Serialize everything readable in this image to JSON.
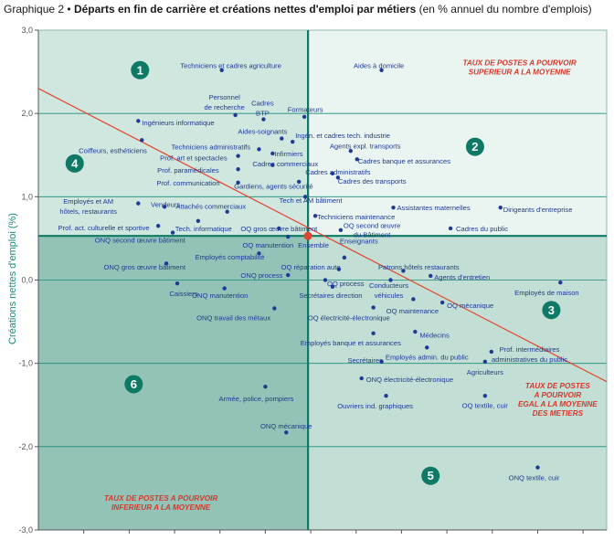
{
  "chart_data": {
    "type": "scatter",
    "title_prefix": "Graphique 2 •",
    "title": "Départs en fin de carrière et créations nettes d'emploi par métiers",
    "subtitle": "(en % annuel du nombre d'emplois)",
    "ylabel": "Créations nettes d'emploi (%)",
    "xlabel": "",
    "xlim": [
      0.0,
      6.26
    ],
    "ylim": [
      -3.0,
      3.0
    ],
    "yticks": [
      "3,0",
      "2,0",
      "1,0",
      "0,0",
      "-1,0",
      "-2,0",
      "-3,0"
    ],
    "ytick_values": [
      3,
      2,
      1,
      0,
      -1,
      -2,
      -3
    ],
    "xticks": [
      0.5,
      1.0,
      1.5,
      2.0,
      2.5,
      3.0,
      3.5,
      4.0,
      4.5,
      5.0,
      5.5,
      6.0
    ],
    "grid": true,
    "center": {
      "x": 2.97,
      "y": 0.53,
      "label": "Ensemble"
    },
    "regression_line": [
      [
        0.0,
        2.3
      ],
      [
        6.26,
        -1.22
      ]
    ],
    "quadrant_numbers": [
      {
        "n": "1",
        "x": 1.12,
        "y": 2.52
      },
      {
        "n": "2",
        "x": 4.81,
        "y": 1.6
      },
      {
        "n": "3",
        "x": 5.65,
        "y": -0.36
      },
      {
        "n": "4",
        "x": 0.4,
        "y": 1.4
      },
      {
        "n": "5",
        "x": 4.32,
        "y": -2.35
      },
      {
        "n": "6",
        "x": 1.05,
        "y": -1.25
      }
    ],
    "notes": [
      {
        "lines": [
          "TAUX DE POSTES A POURVOIR",
          "SUPERIEUR A LA MOYENNE"
        ],
        "x": 5.3,
        "y": 2.58
      },
      {
        "lines": [
          "TAUX DE POSTES",
          "A POURVOIR",
          "EGAL A LA MOYENNE",
          "DES METIERS"
        ],
        "x": 5.72,
        "y": -1.3
      },
      {
        "lines": [
          "TAUX DE POSTES A POURVOIR",
          "INFERIEUR A LA MOYENNE"
        ],
        "x": 1.35,
        "y": -2.65
      }
    ],
    "points": [
      {
        "label": "Techniciens et cadres agriculture",
        "x": 2.02,
        "y": 2.52,
        "lx": 2.12,
        "ly": 2.58,
        "a": "middle"
      },
      {
        "label": "Aides à domicile",
        "x": 3.78,
        "y": 2.52,
        "lx": 3.75,
        "ly": 2.58,
        "a": "middle"
      },
      {
        "label": "Personnel",
        "x": 2.17,
        "y": 1.98,
        "lx": 2.05,
        "ly": 2.2,
        "a": "middle"
      },
      {
        "label": "de recherche",
        "x": 2.17,
        "y": 1.98,
        "lx": 2.05,
        "ly": 2.08,
        "a": "middle"
      },
      {
        "label": "Cadres",
        "x": 2.48,
        "y": 1.93,
        "lx": 2.47,
        "ly": 2.13,
        "a": "middle"
      },
      {
        "label": "BTP",
        "x": 2.48,
        "y": 1.93,
        "lx": 2.47,
        "ly": 2.01,
        "a": "middle"
      },
      {
        "label": "Formateurs",
        "x": 2.93,
        "y": 1.96,
        "lx": 2.94,
        "ly": 2.05,
        "a": "middle"
      },
      {
        "label": "Ingénieurs informatique",
        "x": 1.1,
        "y": 1.91,
        "lx": 1.14,
        "ly": 1.89,
        "a": "start"
      },
      {
        "label": "Aides-soignants",
        "x": 2.68,
        "y": 1.7,
        "lx": 2.47,
        "ly": 1.79,
        "a": "middle"
      },
      {
        "label": "Ingén. et cadres tech. industrie",
        "x": 2.8,
        "y": 1.66,
        "lx": 2.83,
        "ly": 1.74,
        "a": "start"
      },
      {
        "label": "Coiffeurs, esthéticiens",
        "x": 1.14,
        "y": 1.68,
        "lx": 0.82,
        "ly": 1.56,
        "a": "middle"
      },
      {
        "label": "Techniciens administratifs",
        "x": 2.43,
        "y": 1.57,
        "lx": 1.9,
        "ly": 1.6,
        "a": "middle"
      },
      {
        "label": "Agents expl. transports",
        "x": 3.44,
        "y": 1.55,
        "lx": 3.6,
        "ly": 1.61,
        "a": "middle"
      },
      {
        "label": "Infirmiers",
        "x": 2.58,
        "y": 1.52,
        "lx": 2.6,
        "ly": 1.52,
        "a": "start"
      },
      {
        "label": "Prof. art et spectacles",
        "x": 2.2,
        "y": 1.49,
        "lx": 1.71,
        "ly": 1.47,
        "a": "middle"
      },
      {
        "label": "Cadres banque et assurances",
        "x": 3.51,
        "y": 1.45,
        "lx": 3.52,
        "ly": 1.43,
        "a": "start"
      },
      {
        "label": "Cadres commerciaux",
        "x": 2.58,
        "y": 1.38,
        "lx": 2.72,
        "ly": 1.4,
        "a": "middle"
      },
      {
        "label": "Prof. paramédicales",
        "x": 2.2,
        "y": 1.33,
        "lx": 1.65,
        "ly": 1.32,
        "a": "middle"
      },
      {
        "label": "Cadres administratifs",
        "x": 3.24,
        "y": 1.28,
        "lx": 3.3,
        "ly": 1.3,
        "a": "middle"
      },
      {
        "label": "Prof. communication",
        "x": 2.2,
        "y": 1.17,
        "lx": 1.65,
        "ly": 1.17,
        "a": "middle"
      },
      {
        "label": "Cadres des transports",
        "x": 3.3,
        "y": 1.23,
        "lx": 3.3,
        "ly": 1.19,
        "a": "start"
      },
      {
        "label": "Gardiens, agents sécurité",
        "x": 2.87,
        "y": 1.18,
        "lx": 2.59,
        "ly": 1.13,
        "a": "middle"
      },
      {
        "label": "Tech et AM bâtiment",
        "x": 2.94,
        "y": 1.0,
        "lx": 3.0,
        "ly": 0.96,
        "a": "middle"
      },
      {
        "label": "Employés et AM",
        "x": 1.1,
        "y": 0.92,
        "lx": 0.55,
        "ly": 0.95,
        "a": "middle"
      },
      {
        "label": "hôtels, restaurants",
        "x": 1.1,
        "y": 0.92,
        "lx": 0.55,
        "ly": 0.83,
        "a": "middle"
      },
      {
        "label": "Vendeurs",
        "x": 1.39,
        "y": 0.88,
        "lx": 1.4,
        "ly": 0.91,
        "a": "middle"
      },
      {
        "label": "Attachés commerciaux",
        "x": 2.08,
        "y": 0.82,
        "lx": 1.9,
        "ly": 0.89,
        "a": "middle"
      },
      {
        "label": "Assistantes maternelles",
        "x": 3.91,
        "y": 0.87,
        "lx": 3.95,
        "ly": 0.87,
        "a": "start"
      },
      {
        "label": "Dirigeants d'entreprise",
        "x": 5.09,
        "y": 0.87,
        "lx": 5.12,
        "ly": 0.85,
        "a": "start"
      },
      {
        "label": "Techniciens maintenance",
        "x": 3.05,
        "y": 0.77,
        "lx": 3.07,
        "ly": 0.76,
        "a": "start"
      },
      {
        "label": "Tech. informatique",
        "x": 1.76,
        "y": 0.71,
        "lx": 1.82,
        "ly": 0.62,
        "a": "middle"
      },
      {
        "label": "Prof. act. culturelle et sportive",
        "x": 1.32,
        "y": 0.65,
        "lx": 0.72,
        "ly": 0.63,
        "a": "middle"
      },
      {
        "label": "OQ gros œuvre bâtiment",
        "x": 2.65,
        "y": 0.62,
        "lx": 2.65,
        "ly": 0.62,
        "a": "middle"
      },
      {
        "label": "OQ second œuvre",
        "x": 3.33,
        "y": 0.6,
        "lx": 3.36,
        "ly": 0.66,
        "a": "start"
      },
      {
        "label": "du Bâtiment",
        "x": 3.33,
        "y": 0.6,
        "lx": 3.47,
        "ly": 0.55,
        "a": "start"
      },
      {
        "label": "Cadres du public",
        "x": 4.54,
        "y": 0.62,
        "lx": 4.6,
        "ly": 0.62,
        "a": "start"
      },
      {
        "label": "ONQ second œuvre bâtiment",
        "x": 1.48,
        "y": 0.57,
        "lx": 1.12,
        "ly": 0.48,
        "a": "middle"
      },
      {
        "label": "Ensemble",
        "x": 2.97,
        "y": 0.53,
        "lx": 3.03,
        "ly": 0.42,
        "a": "middle"
      },
      {
        "label": "OQ manutention",
        "x": 2.75,
        "y": 0.52,
        "lx": 2.53,
        "ly": 0.42,
        "a": "middle"
      },
      {
        "label": "Enseignants",
        "x": 3.37,
        "y": 0.27,
        "lx": 3.32,
        "ly": 0.47,
        "a": "start"
      },
      {
        "label": "Employés comptabilité",
        "x": 2.43,
        "y": 0.32,
        "lx": 2.11,
        "ly": 0.28,
        "a": "middle"
      },
      {
        "label": "ONQ gros œuvre bâtiment",
        "x": 1.41,
        "y": 0.2,
        "lx": 1.17,
        "ly": 0.16,
        "a": "middle"
      },
      {
        "label": "Patrons hôtels restaurants",
        "x": 4.02,
        "y": 0.11,
        "lx": 4.19,
        "ly": 0.16,
        "a": "middle"
      },
      {
        "label": "OQ réparation auto",
        "x": 3.31,
        "y": 0.13,
        "lx": 3.0,
        "ly": 0.16,
        "a": "middle"
      },
      {
        "label": "ONQ process",
        "x": 2.75,
        "y": 0.06,
        "lx": 2.46,
        "ly": 0.06,
        "a": "middle"
      },
      {
        "label": "Agents d'entretien",
        "x": 4.32,
        "y": 0.05,
        "lx": 4.36,
        "ly": 0.04,
        "a": "start"
      },
      {
        "label": "OQ process",
        "x": 3.16,
        "y": 0.0,
        "lx": 3.18,
        "ly": -0.04,
        "a": "start"
      },
      {
        "label": "Conducteurs",
        "x": 3.88,
        "y": 0.0,
        "lx": 3.86,
        "ly": -0.06,
        "a": "middle"
      },
      {
        "label": "véhicules",
        "x": 3.88,
        "y": 0.0,
        "lx": 3.86,
        "ly": -0.18,
        "a": "middle"
      },
      {
        "label": "Caissiers",
        "x": 1.53,
        "y": -0.04,
        "lx": 1.6,
        "ly": -0.16,
        "a": "middle"
      },
      {
        "label": "ONQ manutention",
        "x": 2.05,
        "y": -0.1,
        "lx": 2.0,
        "ly": -0.18,
        "a": "middle"
      },
      {
        "label": "Secrétaires direction",
        "x": 3.24,
        "y": -0.08,
        "lx": 3.22,
        "ly": -0.18,
        "a": "middle"
      },
      {
        "label": "Employés de maison",
        "x": 5.75,
        "y": -0.03,
        "lx": 5.6,
        "ly": -0.15,
        "a": "middle"
      },
      {
        "label": "OQ mécanique",
        "x": 4.45,
        "y": -0.27,
        "lx": 4.5,
        "ly": -0.3,
        "a": "start"
      },
      {
        "label": "OQ maintenance",
        "x": 4.13,
        "y": -0.23,
        "lx": 4.12,
        "ly": -0.37,
        "a": "middle"
      },
      {
        "label": "ONQ travail des métaux",
        "x": 2.6,
        "y": -0.34,
        "lx": 2.15,
        "ly": -0.45,
        "a": "middle"
      },
      {
        "label": "OQ électricité-électronique",
        "x": 3.69,
        "y": -0.33,
        "lx": 3.42,
        "ly": -0.45,
        "a": "middle"
      },
      {
        "label": "Médecins",
        "x": 4.15,
        "y": -0.62,
        "lx": 4.2,
        "ly": -0.66,
        "a": "start"
      },
      {
        "label": "Employés banque et assurances",
        "x": 3.69,
        "y": -0.64,
        "lx": 3.44,
        "ly": -0.75,
        "a": "middle"
      },
      {
        "label": "Prof. intermédiaires",
        "x": 4.99,
        "y": -0.86,
        "lx": 5.41,
        "ly": -0.83,
        "a": "middle"
      },
      {
        "label": "administratives du public",
        "x": 4.99,
        "y": -0.86,
        "lx": 5.41,
        "ly": -0.95,
        "a": "middle"
      },
      {
        "label": "Employés admin. du public",
        "x": 4.28,
        "y": -0.81,
        "lx": 4.28,
        "ly": -0.92,
        "a": "middle"
      },
      {
        "label": "Secrétaires",
        "x": 3.78,
        "y": -0.98,
        "lx": 3.6,
        "ly": -0.96,
        "a": "middle"
      },
      {
        "label": "Agriculteurs",
        "x": 4.92,
        "y": -0.98,
        "lx": 4.92,
        "ly": -1.1,
        "a": "middle"
      },
      {
        "label": "ONQ électricité-électronique",
        "x": 3.56,
        "y": -1.18,
        "lx": 3.61,
        "ly": -1.19,
        "a": "start"
      },
      {
        "label": "Armée, police, pompiers",
        "x": 2.5,
        "y": -1.28,
        "lx": 2.4,
        "ly": -1.42,
        "a": "middle"
      },
      {
        "label": "OQ textile, cuir",
        "x": 4.92,
        "y": -1.39,
        "lx": 4.92,
        "ly": -1.5,
        "a": "middle"
      },
      {
        "label": "Ouvriers ind. graphiques",
        "x": 3.83,
        "y": -1.39,
        "lx": 3.71,
        "ly": -1.51,
        "a": "middle"
      },
      {
        "label": "ONQ mécanique",
        "x": 2.73,
        "y": -1.83,
        "lx": 2.73,
        "ly": -1.75,
        "a": "middle"
      },
      {
        "label": "ONQ textile, cuir",
        "x": 5.5,
        "y": -2.25,
        "lx": 5.46,
        "ly": -2.37,
        "a": "middle"
      }
    ]
  }
}
